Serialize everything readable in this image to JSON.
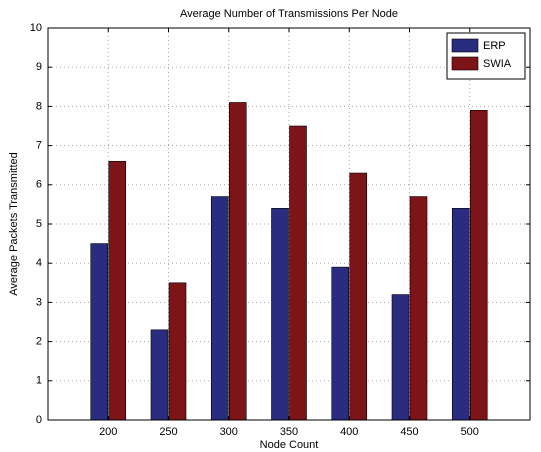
{
  "chart_data": {
    "type": "bar",
    "title": "Average Number of Transmissions Per Node",
    "xlabel": "Node Count",
    "ylabel": "Average Packets Transmitted",
    "x": [
      200,
      250,
      300,
      350,
      400,
      450,
      500
    ],
    "series": [
      {
        "name": "ERP",
        "color": "#2a2c80",
        "values": [
          4.5,
          2.3,
          5.7,
          5.4,
          3.9,
          3.2,
          5.4
        ]
      },
      {
        "name": "SWIA",
        "color": "#7d1417",
        "values": [
          6.6,
          3.5,
          8.1,
          7.5,
          6.3,
          5.7,
          7.9
        ]
      }
    ],
    "xlim": [
      150,
      550
    ],
    "xticks": [
      200,
      250,
      300,
      350,
      400,
      450,
      500
    ],
    "ylim": [
      0,
      10
    ],
    "yticks": [
      0,
      1,
      2,
      3,
      4,
      5,
      6,
      7,
      8,
      9,
      10
    ],
    "grid": true,
    "legend": "top-right"
  }
}
